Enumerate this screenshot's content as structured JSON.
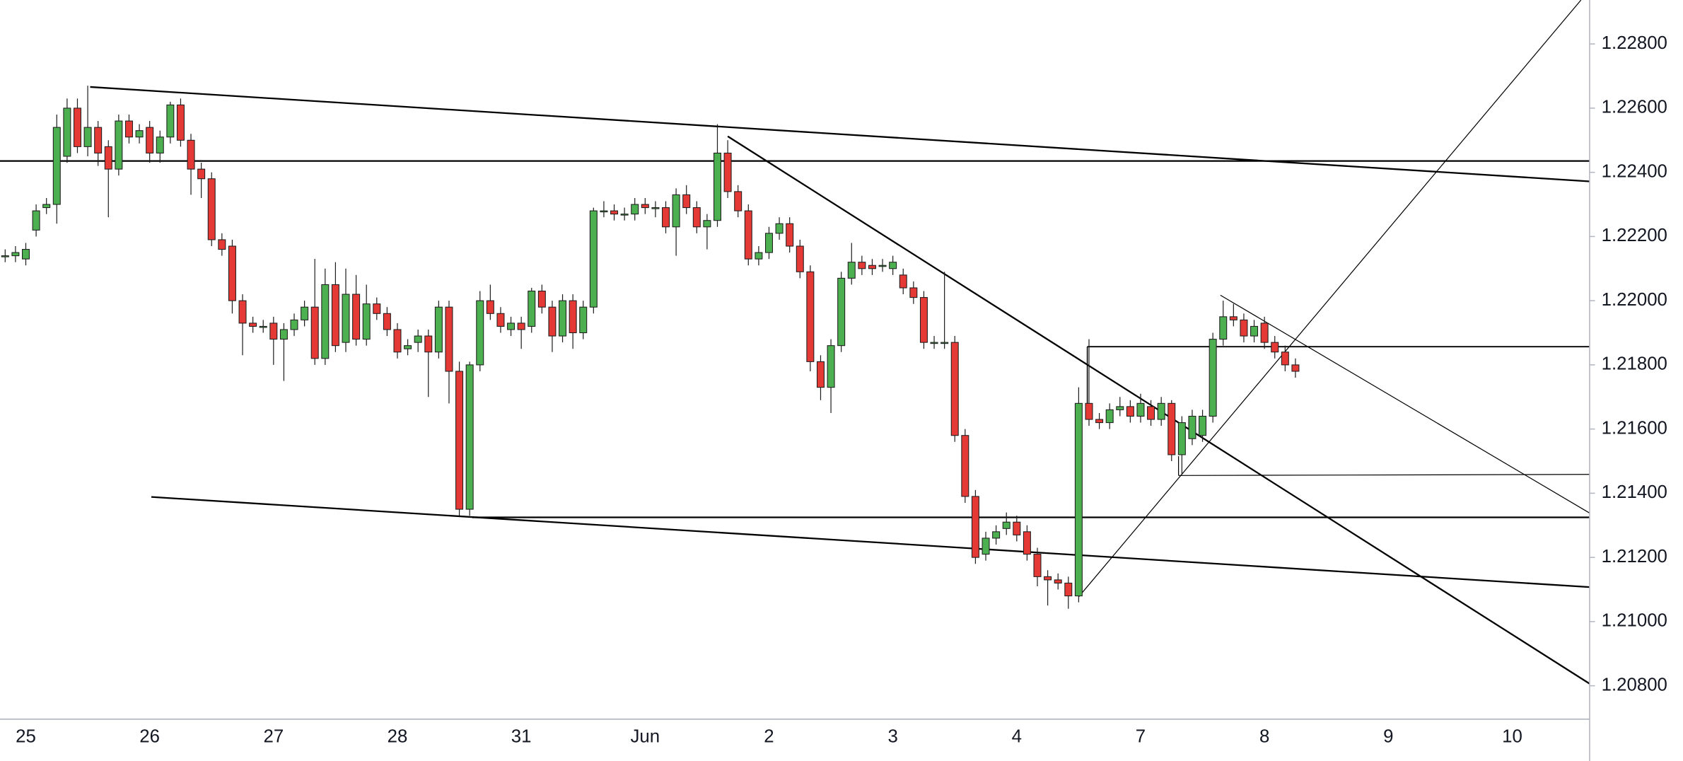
{
  "chart_data": {
    "type": "candlestick",
    "categories": [
      null,
      null,
      "25",
      null,
      null,
      null,
      null,
      null,
      null,
      null,
      null,
      null,
      null,
      null,
      "26",
      null,
      null,
      null,
      null,
      null,
      null,
      null,
      null,
      null,
      null,
      null,
      "27",
      null,
      null,
      null,
      null,
      null,
      null,
      null,
      null,
      null,
      null,
      null,
      "28",
      null,
      null,
      null,
      null,
      null,
      null,
      null,
      null,
      null,
      null,
      null,
      "31",
      null,
      null,
      null,
      null,
      null,
      null,
      null,
      null,
      null,
      null,
      null,
      "Jun",
      null,
      null,
      null,
      null,
      null,
      null,
      null,
      null,
      null,
      null,
      null,
      "2",
      null,
      null,
      null,
      null,
      null,
      null,
      null,
      null,
      null,
      null,
      null,
      "3",
      null,
      null,
      null,
      null,
      null,
      null,
      null,
      null,
      null,
      null,
      null,
      "4",
      null,
      null,
      null,
      null,
      null,
      null,
      null,
      null,
      null,
      null,
      null,
      "7",
      null,
      null,
      null,
      null,
      null,
      null,
      null,
      null,
      null,
      null,
      null,
      "8",
      null,
      null,
      null,
      null,
      null,
      null,
      null,
      null,
      null,
      null,
      null,
      "9",
      null,
      null,
      null,
      null,
      null,
      null,
      null,
      null,
      null,
      null,
      null,
      "10",
      null,
      null,
      null,
      null,
      null,
      null,
      null
    ],
    "open": [
      1.2214,
      1.2214,
      1.2213,
      1.2222,
      1.2229,
      1.223,
      1.2245,
      1.226,
      1.2248,
      1.2254,
      1.2248,
      1.2241,
      1.2256,
      1.2251,
      1.2254,
      1.2246,
      1.2251,
      1.2261,
      1.225,
      1.2241,
      1.2238,
      1.2219,
      1.2217,
      1.22,
      1.2193,
      1.2192,
      1.2193,
      1.2188,
      1.2191,
      1.2194,
      1.2198,
      1.2182,
      1.2205,
      1.2187,
      1.2202,
      1.2188,
      1.2199,
      1.2196,
      1.2191,
      1.2185,
      1.2187,
      1.2189,
      1.2184,
      1.2198,
      1.2178,
      1.2135,
      1.218,
      1.22,
      1.2196,
      1.2191,
      1.2193,
      1.2192,
      1.2203,
      1.2198,
      1.2189,
      1.22,
      1.219,
      1.2198,
      1.2228,
      1.2228,
      1.2227,
      1.2227,
      1.223,
      1.2229,
      1.2229,
      1.2223,
      1.2233,
      1.2229,
      1.2223,
      1.2225,
      1.2246,
      1.2234,
      1.2228,
      1.2213,
      1.2215,
      1.2221,
      1.2224,
      1.2217,
      1.2209,
      1.2181,
      1.2173,
      1.2186,
      1.2207,
      1.2212,
      1.2211,
      1.2211,
      1.221,
      1.2208,
      1.2204,
      1.2201,
      1.2187,
      1.2187,
      1.2187,
      1.2158,
      1.2139,
      1.2121,
      1.2126,
      1.2129,
      1.2131,
      1.2128,
      1.2121,
      1.2114,
      1.2113,
      1.2112,
      1.2108,
      1.2168,
      1.2163,
      1.2162,
      1.2166,
      1.2167,
      1.2164,
      1.2167,
      1.2163,
      1.2168,
      1.2152,
      1.2157,
      1.2158,
      1.2164,
      1.2188,
      1.2195,
      1.2194,
      1.2189,
      1.2193,
      1.2187,
      1.2184,
      1.218,
      null,
      null,
      null,
      null,
      null,
      null,
      null,
      null,
      null,
      null,
      null,
      null,
      null,
      null,
      null,
      null,
      null,
      null,
      null,
      null,
      null,
      null,
      null,
      null,
      null,
      null,
      null,
      null
    ],
    "high": [
      1.2216,
      1.2217,
      1.2218,
      1.223,
      1.2232,
      1.2258,
      1.2263,
      1.2263,
      1.2267,
      1.2256,
      1.225,
      1.2258,
      1.2258,
      1.2255,
      1.2256,
      1.2253,
      1.2262,
      1.2263,
      1.2252,
      1.2243,
      1.224,
      1.2221,
      1.2219,
      1.2202,
      1.2195,
      1.2194,
      1.2195,
      1.2193,
      1.2196,
      1.22,
      1.2213,
      1.221,
      1.2212,
      1.221,
      1.2208,
      1.2205,
      1.2201,
      1.2198,
      1.2193,
      1.2188,
      1.2191,
      1.2191,
      1.22,
      1.22,
      1.2181,
      1.2181,
      1.2203,
      1.2205,
      1.2198,
      1.2195,
      1.2195,
      1.2204,
      1.2205,
      1.22,
      1.2202,
      1.2202,
      1.22,
      1.2229,
      1.2231,
      1.223,
      1.2229,
      1.2232,
      1.2232,
      1.2231,
      1.2231,
      1.2235,
      1.2236,
      1.2231,
      1.2227,
      1.2255,
      1.225,
      1.2236,
      1.223,
      1.2217,
      1.2223,
      1.2226,
      1.2226,
      1.2219,
      1.2211,
      1.2183,
      1.2188,
      1.2209,
      1.2218,
      1.2214,
      1.2213,
      1.2213,
      1.2214,
      1.221,
      1.2206,
      1.2203,
      1.2189,
      1.2209,
      1.2189,
      1.216,
      1.2141,
      1.2128,
      1.213,
      1.2134,
      1.2133,
      1.213,
      1.2123,
      1.2116,
      1.2115,
      1.2114,
      1.2173,
      1.2188,
      1.2165,
      1.2168,
      1.217,
      1.2169,
      1.2171,
      1.2169,
      1.217,
      1.2169,
      1.2164,
      1.2166,
      1.2166,
      1.219,
      1.22,
      1.2199,
      1.2196,
      1.2194,
      1.2195,
      1.2189,
      1.2186,
      1.2182,
      null,
      null,
      null,
      null,
      null,
      null,
      null,
      null,
      null,
      null,
      null,
      null,
      null,
      null,
      null,
      null,
      null,
      null,
      null,
      null,
      null,
      null,
      null,
      null,
      null,
      null,
      null,
      null
    ],
    "low": [
      1.2212,
      1.2212,
      1.2211,
      1.222,
      1.2227,
      1.2224,
      1.2243,
      1.2246,
      1.2245,
      1.2242,
      1.2226,
      1.2239,
      1.2249,
      1.2249,
      1.2243,
      1.2243,
      1.2249,
      1.2248,
      1.2233,
      1.2232,
      1.2217,
      1.2214,
      1.2196,
      1.2183,
      1.219,
      1.219,
      1.218,
      1.2175,
      1.2189,
      1.2192,
      1.218,
      1.218,
      1.2184,
      1.2184,
      1.2186,
      1.2186,
      1.2194,
      1.2189,
      1.2182,
      1.2183,
      1.2184,
      1.217,
      1.2182,
      1.2168,
      1.2133,
      1.2133,
      1.2178,
      1.2194,
      1.219,
      1.2189,
      1.2185,
      1.219,
      1.2196,
      1.2184,
      1.2187,
      1.2185,
      1.2188,
      1.2196,
      1.2226,
      1.2225,
      1.2225,
      1.2225,
      1.2227,
      1.2226,
      1.2221,
      1.2214,
      1.2227,
      1.2221,
      1.2216,
      1.2223,
      1.2232,
      1.2226,
      1.2211,
      1.2211,
      1.2213,
      1.2219,
      1.2215,
      1.2207,
      1.2178,
      1.2169,
      1.2165,
      1.2184,
      1.2205,
      1.2208,
      1.2208,
      1.2209,
      1.2208,
      1.2202,
      1.2199,
      1.2185,
      1.2185,
      1.2185,
      1.2156,
      1.2137,
      1.2118,
      1.2119,
      1.2124,
      1.2127,
      1.2125,
      1.2119,
      1.2111,
      1.2105,
      1.211,
      1.2104,
      1.2106,
      1.2161,
      1.216,
      1.216,
      1.2164,
      1.2162,
      1.2162,
      1.2161,
      1.2161,
      1.215,
      1.2146,
      1.2155,
      1.2156,
      1.2162,
      1.2186,
      1.2192,
      1.2187,
      1.2187,
      1.2185,
      1.2182,
      1.2178,
      1.2176,
      null,
      null,
      null,
      null,
      null,
      null,
      null,
      null,
      null,
      null,
      null,
      null,
      null,
      null,
      null,
      null,
      null,
      null,
      null,
      null,
      null,
      null,
      null,
      null,
      null,
      null,
      null,
      null
    ],
    "close": [
      1.2214,
      1.2215,
      1.2216,
      1.2228,
      1.223,
      1.2254,
      1.226,
      1.2248,
      1.2254,
      1.2246,
      1.2241,
      1.2256,
      1.2251,
      1.2253,
      1.2246,
      1.2251,
      1.2261,
      1.225,
      1.2241,
      1.2238,
      1.2219,
      1.2216,
      1.22,
      1.2193,
      1.2192,
      1.2192,
      1.2188,
      1.2191,
      1.2194,
      1.2198,
      1.2182,
      1.2205,
      1.2186,
      1.2202,
      1.2188,
      1.2199,
      1.2196,
      1.2191,
      1.2184,
      1.2186,
      1.2189,
      1.2184,
      1.2198,
      1.2178,
      1.2135,
      1.218,
      1.22,
      1.2196,
      1.2192,
      1.2193,
      1.2191,
      1.2203,
      1.2198,
      1.2189,
      1.22,
      1.219,
      1.2198,
      1.2228,
      1.2228,
      1.2227,
      1.2227,
      1.223,
      1.2229,
      1.2229,
      1.2223,
      1.2233,
      1.2229,
      1.2223,
      1.2225,
      1.2246,
      1.2234,
      1.2228,
      1.2213,
      1.2215,
      1.2221,
      1.2224,
      1.2217,
      1.2209,
      1.2181,
      1.2173,
      1.2186,
      1.2207,
      1.2212,
      1.221,
      1.221,
      1.2211,
      1.2212,
      1.2204,
      1.2201,
      1.2187,
      1.2187,
      1.2187,
      1.2158,
      1.2139,
      1.212,
      1.2126,
      1.2128,
      1.2131,
      1.2127,
      1.2121,
      1.2114,
      1.2113,
      1.2112,
      1.2108,
      1.2168,
      1.2163,
      1.2162,
      1.2166,
      1.2167,
      1.2164,
      1.2168,
      1.2163,
      1.2168,
      1.2152,
      1.2162,
      1.2164,
      1.2164,
      1.2188,
      1.2195,
      1.2194,
      1.2189,
      1.2192,
      1.2187,
      1.2184,
      1.218,
      1.2178,
      null,
      null,
      null,
      null,
      null,
      null,
      null,
      null,
      null,
      null,
      null,
      null,
      null,
      null,
      null,
      null,
      null,
      null,
      null,
      null,
      null,
      null,
      null,
      null,
      null,
      null,
      null,
      null
    ],
    "up_color": "#4caf50",
    "down_color": "#e53935",
    "ylim": [
      1.20696,
      1.22937
    ],
    "yticks": [
      {
        "value": 1.208,
        "label": "1.20800"
      },
      {
        "value": 1.21,
        "label": "1.21000"
      },
      {
        "value": 1.212,
        "label": "1.21200"
      },
      {
        "value": 1.214,
        "label": "1.21400"
      },
      {
        "value": 1.216,
        "label": "1.21600"
      },
      {
        "value": 1.218,
        "label": "1.21800"
      },
      {
        "value": 1.22,
        "label": "1.22000"
      },
      {
        "value": 1.222,
        "label": "1.22200"
      },
      {
        "value": 1.224,
        "label": "1.22400"
      },
      {
        "value": 1.226,
        "label": "1.22600"
      },
      {
        "value": 1.228,
        "label": "1.22800"
      }
    ],
    "grid": false
  }
}
